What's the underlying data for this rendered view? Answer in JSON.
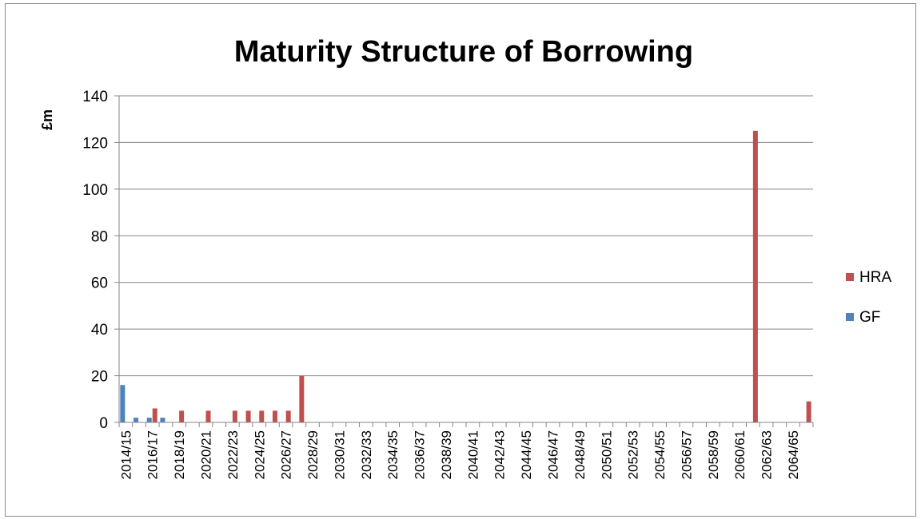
{
  "chart_data": {
    "type": "bar",
    "title": "Maturity Structure of Borrowing",
    "xlabel": "",
    "ylabel": "£m",
    "ylim": [
      0,
      140
    ],
    "yticks": [
      0,
      20,
      40,
      60,
      80,
      100,
      120,
      140
    ],
    "grid": true,
    "legend_position": "right",
    "categories": [
      "2014/15",
      "2015/16",
      "2016/17",
      "2017/18",
      "2018/19",
      "2019/20",
      "2020/21",
      "2021/22",
      "2022/23",
      "2023/24",
      "2024/25",
      "2025/26",
      "2026/27",
      "2027/28",
      "2028/29",
      "2029/30",
      "2030/31",
      "2031/32",
      "2032/33",
      "2033/34",
      "2034/35",
      "2035/36",
      "2036/37",
      "2037/38",
      "2038/39",
      "2039/40",
      "2040/41",
      "2041/42",
      "2042/43",
      "2043/44",
      "2044/45",
      "2045/46",
      "2046/47",
      "2047/48",
      "2048/49",
      "2049/50",
      "2050/51",
      "2051/52",
      "2052/53",
      "2053/54",
      "2054/55",
      "2055/56",
      "2056/57",
      "2057/58",
      "2058/59",
      "2059/60",
      "2060/61",
      "2061/62",
      "2062/63",
      "2063/64",
      "2064/65",
      "2065/66"
    ],
    "visible_tick_labels": [
      "2014/15",
      "2016/17",
      "2018/19",
      "2020/21",
      "2022/23",
      "2024/25",
      "2026/27",
      "2028/29",
      "2030/31",
      "2032/33",
      "2034/35",
      "2036/37",
      "2038/39",
      "2040/41",
      "2042/43",
      "2044/45",
      "2046/47",
      "2048/49",
      "2050/51",
      "2052/53",
      "2054/55",
      "2056/57",
      "2058/59",
      "2060/61",
      "2062/63",
      "2064/65"
    ],
    "series": [
      {
        "name": "GF",
        "color": "#4f81bd",
        "values": [
          16,
          2,
          2,
          2,
          0,
          0,
          0,
          0,
          0,
          0,
          0,
          0,
          0,
          0,
          0,
          0,
          0,
          0,
          0,
          0,
          0,
          0,
          0,
          0,
          0,
          0,
          0,
          0,
          0,
          0,
          0,
          0,
          0,
          0,
          0,
          0,
          0,
          0,
          0,
          0,
          0,
          0,
          0,
          0,
          0,
          0,
          0,
          0,
          0,
          0,
          0,
          0
        ]
      },
      {
        "name": "HRA",
        "color": "#c0504d",
        "values": [
          0,
          0,
          6,
          0,
          5,
          0,
          5,
          0,
          5,
          5,
          5,
          5,
          5,
          20,
          0,
          0,
          0,
          0,
          0,
          0,
          0,
          0,
          0,
          0,
          0,
          0,
          0,
          0,
          0,
          0,
          0,
          0,
          0,
          0,
          0,
          0,
          0,
          0,
          0,
          0,
          0,
          0,
          0,
          0,
          0,
          0,
          0,
          125,
          0,
          0,
          0,
          9
        ]
      }
    ],
    "legend_order": [
      "HRA",
      "GF"
    ]
  }
}
